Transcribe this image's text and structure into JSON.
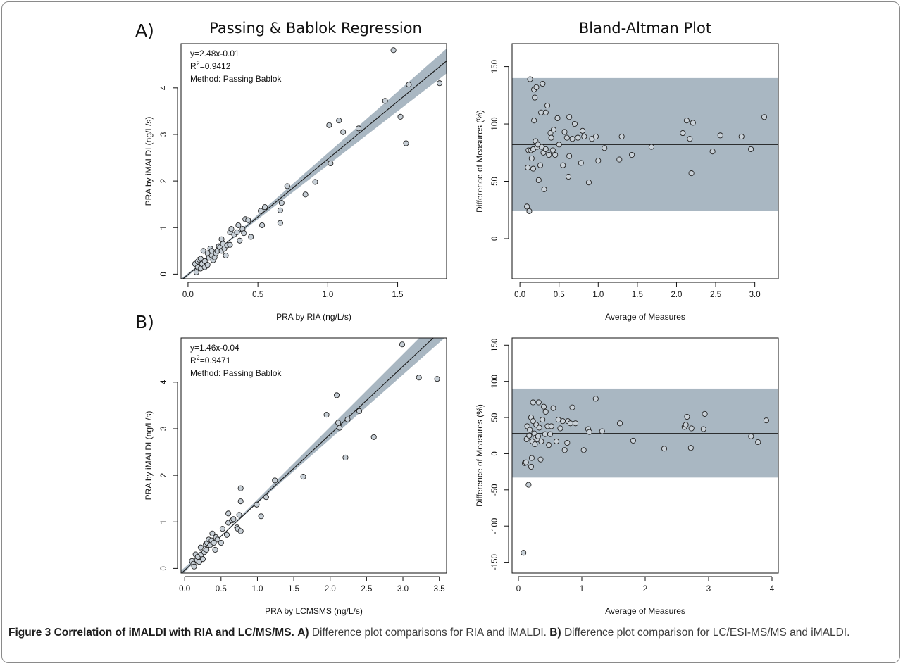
{
  "figure": {
    "panel_labels": [
      "A)",
      "B)"
    ],
    "column_titles": [
      "Passing & Bablok Regression",
      "Bland-Altman Plot"
    ]
  },
  "caption": {
    "bold": "Figure 3 Correlation of iMALDI with RIA and LC/MS/MS.",
    "a_label": "A)",
    "a_text": " Difference plot comparisons for RIA and iMALDI.",
    "b_label": "B)",
    "b_text": " Difference plot comparison for LC/ESI-MS/MS and iMALDI."
  },
  "colors": {
    "band": "#a9b7c2",
    "point_fill": "#c8d0d7",
    "line": "#1a1a1a"
  },
  "chart_data": [
    {
      "id": "A-regression",
      "type": "scatter",
      "xlabel": "PRA by RIA (ng/L/s)",
      "ylabel": "PRA by iMALDI (ng/L/s)",
      "xlim": [
        -0.05,
        1.85
      ],
      "ylim": [
        -0.1,
        4.95
      ],
      "xticks": [
        "0.0",
        "0.5",
        "1.0",
        "1.5"
      ],
      "xtick_values": [
        0,
        0.5,
        1.0,
        1.5
      ],
      "yticks": [
        "0",
        "1",
        "2",
        "3",
        "4"
      ],
      "ytick_values": [
        0,
        1,
        2,
        3,
        4
      ],
      "annotation": [
        "y=2.48x-0.01",
        "R2=0.9412",
        "Method: Passing Bablok"
      ],
      "fit": {
        "slope": 2.48,
        "intercept": -0.01
      },
      "ci_band": {
        "slope_lo": 2.32,
        "int_lo": 0.02,
        "slope_hi": 2.64,
        "int_hi": -0.04
      },
      "points": [
        [
          0.05,
          0.22
        ],
        [
          0.06,
          0.04
        ],
        [
          0.07,
          0.15
        ],
        [
          0.07,
          0.27
        ],
        [
          0.08,
          0.31
        ],
        [
          0.09,
          0.12
        ],
        [
          0.09,
          0.33
        ],
        [
          0.1,
          0.22
        ],
        [
          0.11,
          0.5
        ],
        [
          0.12,
          0.15
        ],
        [
          0.12,
          0.28
        ],
        [
          0.14,
          0.2
        ],
        [
          0.14,
          0.45
        ],
        [
          0.15,
          0.35
        ],
        [
          0.16,
          0.55
        ],
        [
          0.17,
          0.4
        ],
        [
          0.17,
          0.5
        ],
        [
          0.18,
          0.3
        ],
        [
          0.19,
          0.36
        ],
        [
          0.2,
          0.45
        ],
        [
          0.21,
          0.5
        ],
        [
          0.22,
          0.6
        ],
        [
          0.23,
          0.58
        ],
        [
          0.24,
          0.75
        ],
        [
          0.24,
          0.5
        ],
        [
          0.25,
          0.65
        ],
        [
          0.26,
          0.55
        ],
        [
          0.27,
          0.4
        ],
        [
          0.28,
          0.62
        ],
        [
          0.3,
          0.9
        ],
        [
          0.3,
          0.63
        ],
        [
          0.31,
          0.97
        ],
        [
          0.33,
          0.85
        ],
        [
          0.35,
          0.9
        ],
        [
          0.36,
          1.05
        ],
        [
          0.37,
          0.72
        ],
        [
          0.39,
          0.97
        ],
        [
          0.4,
          0.88
        ],
        [
          0.41,
          1.18
        ],
        [
          0.43,
          1.16
        ],
        [
          0.45,
          0.8
        ],
        [
          0.52,
          1.36
        ],
        [
          0.53,
          1.05
        ],
        [
          0.55,
          1.44
        ],
        [
          0.66,
          1.1
        ],
        [
          0.66,
          1.37
        ],
        [
          0.67,
          1.53
        ],
        [
          0.71,
          1.89
        ],
        [
          0.84,
          1.71
        ],
        [
          0.91,
          1.98
        ],
        [
          1.01,
          3.2
        ],
        [
          1.02,
          2.38
        ],
        [
          1.08,
          3.3
        ],
        [
          1.11,
          3.05
        ],
        [
          1.22,
          3.13
        ],
        [
          1.41,
          3.72
        ],
        [
          1.47,
          4.81
        ],
        [
          1.52,
          3.38
        ],
        [
          1.56,
          2.81
        ],
        [
          1.58,
          4.07
        ],
        [
          1.8,
          4.1
        ]
      ]
    },
    {
      "id": "A-bland-altman",
      "type": "scatter",
      "xlabel": "Average of Measures",
      "ylabel": "Difference of Measures (%)",
      "xlim": [
        -0.1,
        3.3
      ],
      "ylim": [
        -35,
        170
      ],
      "xticks": [
        "0.0",
        "0.5",
        "1.0",
        "1.5",
        "2.0",
        "2.5",
        "3.0"
      ],
      "xtick_values": [
        0,
        0.5,
        1.0,
        1.5,
        2.0,
        2.5,
        3.0
      ],
      "yticks": [
        "0",
        "50",
        "100",
        "150"
      ],
      "ytick_values": [
        0,
        50,
        100,
        150
      ],
      "mean_line": 82,
      "limits": [
        24,
        140
      ],
      "points": [
        [
          0.09,
          28
        ],
        [
          0.1,
          62
        ],
        [
          0.11,
          77
        ],
        [
          0.12,
          24
        ],
        [
          0.13,
          139
        ],
        [
          0.14,
          77
        ],
        [
          0.15,
          70
        ],
        [
          0.17,
          78
        ],
        [
          0.17,
          61
        ],
        [
          0.18,
          103
        ],
        [
          0.18,
          130
        ],
        [
          0.19,
          123
        ],
        [
          0.2,
          85
        ],
        [
          0.21,
          132
        ],
        [
          0.22,
          80
        ],
        [
          0.23,
          82
        ],
        [
          0.24,
          51
        ],
        [
          0.26,
          64
        ],
        [
          0.27,
          110
        ],
        [
          0.28,
          80
        ],
        [
          0.29,
          135
        ],
        [
          0.3,
          75
        ],
        [
          0.31,
          43
        ],
        [
          0.33,
          110
        ],
        [
          0.33,
          78
        ],
        [
          0.35,
          116
        ],
        [
          0.37,
          73
        ],
        [
          0.39,
          92
        ],
        [
          0.4,
          88
        ],
        [
          0.42,
          77
        ],
        [
          0.43,
          95
        ],
        [
          0.45,
          73
        ],
        [
          0.48,
          105
        ],
        [
          0.5,
          82
        ],
        [
          0.55,
          64
        ],
        [
          0.57,
          93
        ],
        [
          0.6,
          88
        ],
        [
          0.62,
          54
        ],
        [
          0.63,
          106
        ],
        [
          0.63,
          72
        ],
        [
          0.67,
          87
        ],
        [
          0.7,
          100
        ],
        [
          0.74,
          88
        ],
        [
          0.78,
          66
        ],
        [
          0.8,
          94
        ],
        [
          0.82,
          89
        ],
        [
          0.88,
          49
        ],
        [
          0.92,
          87
        ],
        [
          0.97,
          89
        ],
        [
          1.0,
          68
        ],
        [
          1.08,
          79
        ],
        [
          1.27,
          69
        ],
        [
          1.3,
          89
        ],
        [
          1.43,
          73
        ],
        [
          1.68,
          80
        ],
        [
          2.08,
          92
        ],
        [
          2.13,
          103
        ],
        [
          2.17,
          87
        ],
        [
          2.19,
          57
        ],
        [
          2.21,
          101
        ],
        [
          2.46,
          76
        ],
        [
          2.56,
          90
        ],
        [
          2.83,
          89
        ],
        [
          2.95,
          78
        ],
        [
          3.12,
          106
        ]
      ]
    },
    {
      "id": "B-regression",
      "type": "scatter",
      "xlabel": "PRA by LCMSMS (ng/L/s)",
      "ylabel": "PRA by iMALDI (ng/L/s)",
      "xlim": [
        -0.05,
        3.6
      ],
      "ylim": [
        -0.1,
        4.95
      ],
      "xticks": [
        "0.0",
        "0.5",
        "1.0",
        "1.5",
        "2.0",
        "2.5",
        "3.0",
        "3.5"
      ],
      "xtick_values": [
        0,
        0.5,
        1.0,
        1.5,
        2.0,
        2.5,
        3.0,
        3.5
      ],
      "yticks": [
        "0",
        "1",
        "2",
        "3",
        "4"
      ],
      "ytick_values": [
        0,
        1,
        2,
        3,
        4
      ],
      "annotation": [
        "y=1.46x-0.04",
        "R2=0.9471",
        "Method: Passing Bablok"
      ],
      "fit": {
        "slope": 1.46,
        "intercept": -0.04
      },
      "ci_band": {
        "slope_lo": 1.38,
        "int_lo": 0.02,
        "slope_hi": 1.56,
        "int_hi": -0.08
      },
      "points": [
        [
          0.1,
          0.16
        ],
        [
          0.12,
          0.1
        ],
        [
          0.13,
          0.04
        ],
        [
          0.15,
          0.3
        ],
        [
          0.17,
          0.18
        ],
        [
          0.18,
          0.25
        ],
        [
          0.2,
          0.14
        ],
        [
          0.22,
          0.45
        ],
        [
          0.23,
          0.3
        ],
        [
          0.25,
          0.2
        ],
        [
          0.27,
          0.35
        ],
        [
          0.29,
          0.52
        ],
        [
          0.3,
          0.4
        ],
        [
          0.31,
          0.55
        ],
        [
          0.33,
          0.62
        ],
        [
          0.35,
          0.5
        ],
        [
          0.37,
          0.6
        ],
        [
          0.38,
          0.75
        ],
        [
          0.4,
          0.55
        ],
        [
          0.42,
          0.4
        ],
        [
          0.43,
          0.67
        ],
        [
          0.45,
          0.62
        ],
        [
          0.5,
          0.55
        ],
        [
          0.52,
          0.85
        ],
        [
          0.58,
          0.72
        ],
        [
          0.6,
          1.18
        ],
        [
          0.6,
          0.98
        ],
        [
          0.65,
          1.03
        ],
        [
          0.67,
          1.06
        ],
        [
          0.72,
          0.88
        ],
        [
          0.73,
          0.85
        ],
        [
          0.75,
          1.15
        ],
        [
          0.77,
          0.8
        ],
        [
          0.77,
          1.44
        ],
        [
          0.77,
          1.72
        ],
        [
          0.99,
          1.37
        ],
        [
          1.05,
          1.12
        ],
        [
          1.12,
          1.53
        ],
        [
          1.24,
          1.89
        ],
        [
          1.63,
          1.97
        ],
        [
          1.95,
          3.3
        ],
        [
          2.09,
          3.72
        ],
        [
          2.11,
          3.13
        ],
        [
          2.13,
          3.02
        ],
        [
          2.21,
          2.38
        ],
        [
          2.24,
          3.2
        ],
        [
          2.4,
          3.38
        ],
        [
          2.6,
          2.82
        ],
        [
          2.99,
          4.81
        ],
        [
          3.22,
          4.1
        ],
        [
          3.47,
          4.07
        ]
      ]
    },
    {
      "id": "B-bland-altman",
      "type": "scatter",
      "xlabel": "Average of Measures",
      "ylabel": "Difference of Measures (%)",
      "xlim": [
        -0.1,
        4.1
      ],
      "ylim": [
        -165,
        160
      ],
      "xticks": [
        "0",
        "1",
        "2",
        "3",
        "4"
      ],
      "xtick_values": [
        0,
        1,
        2,
        3,
        4
      ],
      "yticks": [
        "-150",
        "-100",
        "-50",
        "0",
        "50",
        "100",
        "150"
      ],
      "ytick_values": [
        -150,
        -100,
        -50,
        0,
        50,
        100,
        150
      ],
      "mean_line": 28,
      "limits": [
        -33,
        90
      ],
      "points": [
        [
          0.08,
          -137
        ],
        [
          0.1,
          -13
        ],
        [
          0.12,
          -12
        ],
        [
          0.13,
          20
        ],
        [
          0.14,
          38
        ],
        [
          0.16,
          -43
        ],
        [
          0.17,
          25
        ],
        [
          0.18,
          33
        ],
        [
          0.2,
          -18
        ],
        [
          0.2,
          50
        ],
        [
          0.21,
          -6
        ],
        [
          0.22,
          17
        ],
        [
          0.23,
          71
        ],
        [
          0.23,
          45
        ],
        [
          0.25,
          28
        ],
        [
          0.26,
          13
        ],
        [
          0.27,
          22
        ],
        [
          0.28,
          40
        ],
        [
          0.3,
          20
        ],
        [
          0.31,
          24
        ],
        [
          0.32,
          71
        ],
        [
          0.33,
          36
        ],
        [
          0.35,
          -8
        ],
        [
          0.36,
          17
        ],
        [
          0.38,
          47
        ],
        [
          0.4,
          65
        ],
        [
          0.42,
          27
        ],
        [
          0.43,
          58
        ],
        [
          0.46,
          38
        ],
        [
          0.48,
          12
        ],
        [
          0.5,
          27
        ],
        [
          0.52,
          38
        ],
        [
          0.55,
          63
        ],
        [
          0.6,
          17
        ],
        [
          0.63,
          47
        ],
        [
          0.66,
          35
        ],
        [
          0.7,
          45
        ],
        [
          0.73,
          5
        ],
        [
          0.77,
          15
        ],
        [
          0.78,
          45
        ],
        [
          0.82,
          42
        ],
        [
          0.85,
          64
        ],
        [
          0.9,
          42
        ],
        [
          1.03,
          5
        ],
        [
          1.1,
          34
        ],
        [
          1.12,
          30
        ],
        [
          1.22,
          76
        ],
        [
          1.32,
          31
        ],
        [
          1.6,
          42
        ],
        [
          1.81,
          18
        ],
        [
          2.3,
          7
        ],
        [
          2.62,
          37
        ],
        [
          2.64,
          40
        ],
        [
          2.66,
          51
        ],
        [
          2.72,
          8
        ],
        [
          2.73,
          35
        ],
        [
          2.92,
          34
        ],
        [
          2.94,
          55
        ],
        [
          3.67,
          24
        ],
        [
          3.78,
          16
        ],
        [
          3.91,
          46
        ]
      ]
    }
  ]
}
